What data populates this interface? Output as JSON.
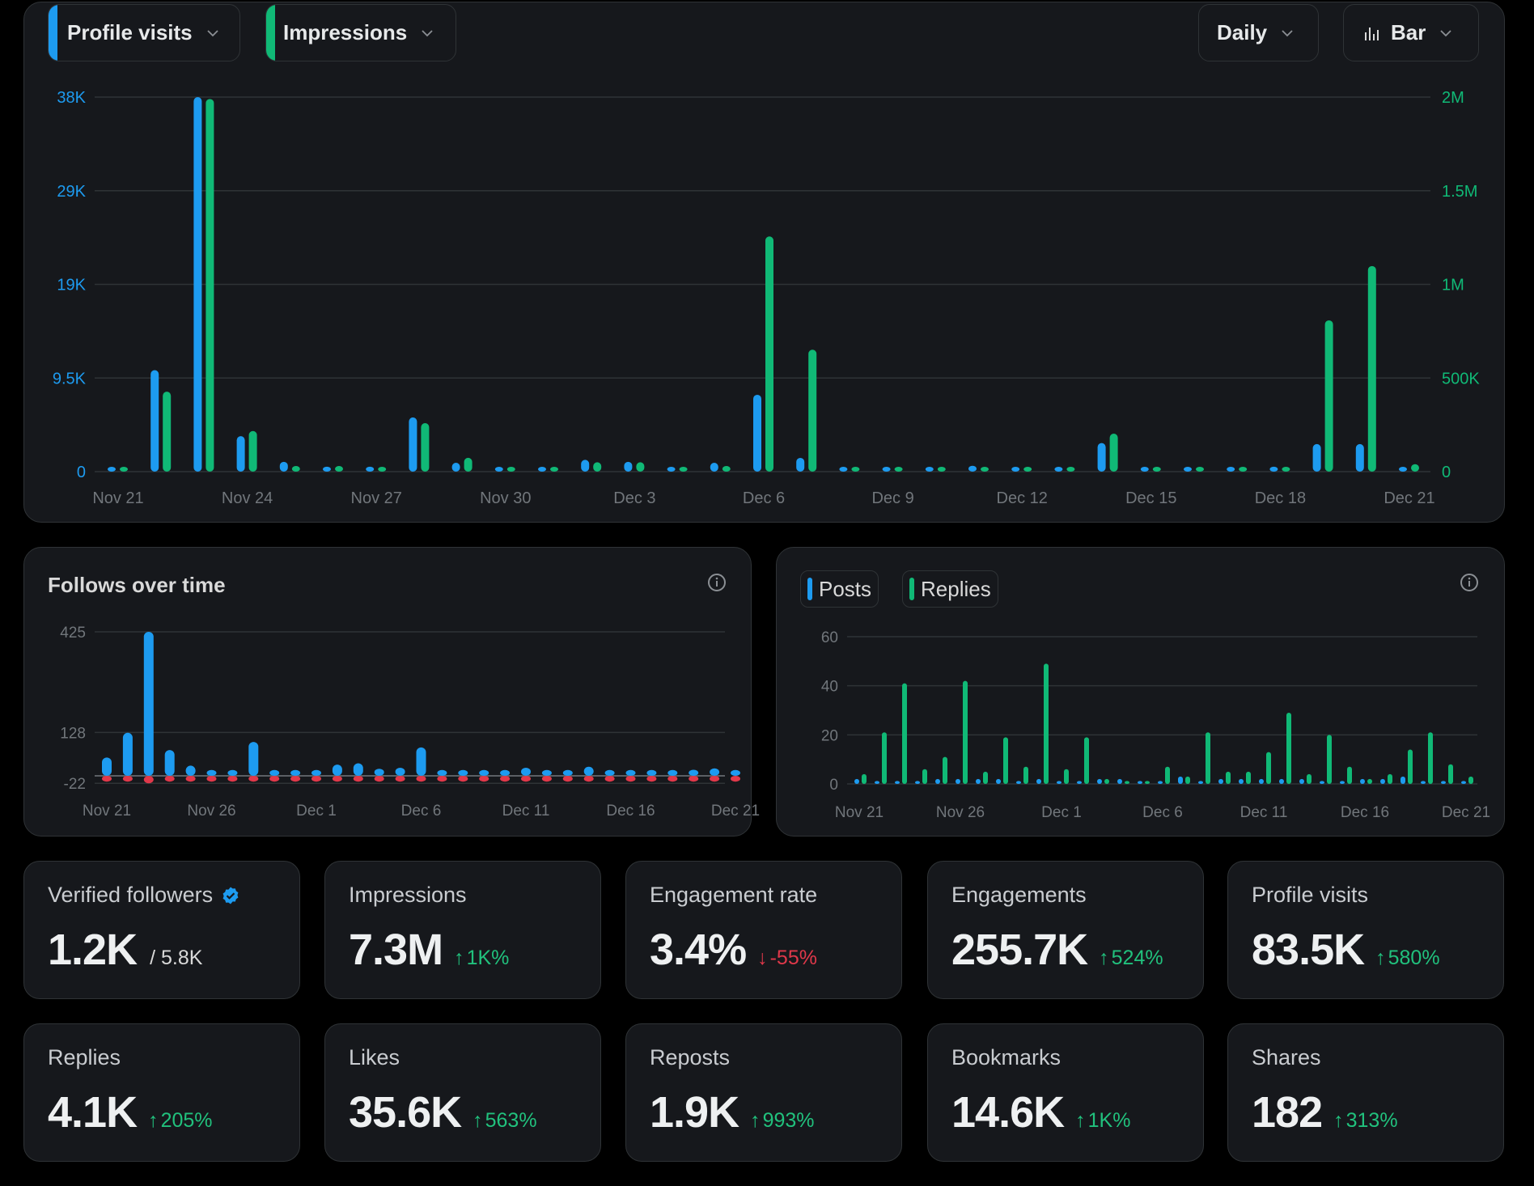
{
  "colors": {
    "blue": "#1d9bf0",
    "green": "#10b976",
    "red": "#e0384a",
    "grid": "#2f3336",
    "axis_text": "#71767b"
  },
  "main_chart": {
    "metric_left_label": "Profile visits",
    "metric_right_label": "Impressions",
    "interval_label": "Daily",
    "chart_type_label": "Bar",
    "chart_type_icon": "bar-chart-icon"
  },
  "follows_panel": {
    "title": "Follows over time",
    "info_icon": "info-icon"
  },
  "posts_panel": {
    "legend": [
      {
        "label": "Posts",
        "color": "#1d9bf0"
      },
      {
        "label": "Replies",
        "color": "#10b976"
      }
    ],
    "info_icon": "info-icon"
  },
  "cards": [
    {
      "label": "Verified followers",
      "value": "1.2K",
      "sub": "/ 5.8K",
      "verified_badge": true
    },
    {
      "label": "Impressions",
      "value": "7.3M",
      "change": "1K%",
      "direction": "up"
    },
    {
      "label": "Engagement rate",
      "value": "3.4%",
      "change": "-55%",
      "direction": "down"
    },
    {
      "label": "Engagements",
      "value": "255.7K",
      "change": "524%",
      "direction": "up"
    },
    {
      "label": "Profile visits",
      "value": "83.5K",
      "change": "580%",
      "direction": "up"
    },
    {
      "label": "Replies",
      "value": "4.1K",
      "change": "205%",
      "direction": "up"
    },
    {
      "label": "Likes",
      "value": "35.6K",
      "change": "563%",
      "direction": "up"
    },
    {
      "label": "Reposts",
      "value": "1.9K",
      "change": "993%",
      "direction": "up"
    },
    {
      "label": "Bookmarks",
      "value": "14.6K",
      "change": "1K%",
      "direction": "up"
    },
    {
      "label": "Shares",
      "value": "182",
      "change": "313%",
      "direction": "up"
    }
  ],
  "chart_data": [
    {
      "type": "bar",
      "title": "Profile visits vs Impressions (Daily)",
      "categories": [
        "Nov 21",
        "Nov 22",
        "Nov 23",
        "Nov 24",
        "Nov 25",
        "Nov 26",
        "Nov 27",
        "Nov 28",
        "Nov 29",
        "Nov 30",
        "Dec 1",
        "Dec 2",
        "Dec 3",
        "Dec 4",
        "Dec 5",
        "Dec 6",
        "Dec 7",
        "Dec 8",
        "Dec 9",
        "Dec 10",
        "Dec 11",
        "Dec 12",
        "Dec 13",
        "Dec 14",
        "Dec 15",
        "Dec 16",
        "Dec 17",
        "Dec 18",
        "Dec 19",
        "Dec 20",
        "Dec 21"
      ],
      "xtick_labels": [
        "Nov 21",
        "Nov 24",
        "Nov 27",
        "Nov 30",
        "Dec 3",
        "Dec 6",
        "Dec 9",
        "Dec 12",
        "Dec 15",
        "Dec 18",
        "Dec 21"
      ],
      "series": [
        {
          "name": "Profile visits",
          "axis": "left",
          "color": "#1d9bf0",
          "values": [
            400,
            10300,
            38000,
            3600,
            1000,
            500,
            500,
            5500,
            900,
            300,
            400,
            1200,
            1000,
            200,
            900,
            7800,
            1400,
            200,
            200,
            200,
            600,
            300,
            300,
            2900,
            200,
            100,
            300,
            500,
            2800,
            2800,
            200
          ]
        },
        {
          "name": "Impressions",
          "axis": "right",
          "color": "#10b976",
          "values": [
            20000,
            427000,
            1990000,
            217000,
            30000,
            30000,
            20000,
            259000,
            74000,
            10000,
            15000,
            50000,
            50000,
            10000,
            30000,
            1256000,
            651000,
            10000,
            10000,
            10000,
            20000,
            15000,
            15000,
            203000,
            15000,
            10000,
            10000,
            15000,
            808000,
            1098000,
            40000
          ]
        }
      ],
      "yleft": {
        "ticks": [
          "0",
          "9.5K",
          "19K",
          "29K",
          "38K"
        ],
        "tick_values": [
          0,
          9500,
          19000,
          28500,
          38000
        ],
        "range": [
          0,
          38000
        ]
      },
      "yright": {
        "ticks": [
          "0",
          "500K",
          "1M",
          "1.5M",
          "2M"
        ],
        "tick_values": [
          0,
          500000,
          1000000,
          1500000,
          2000000
        ],
        "range": [
          0,
          2000000
        ]
      },
      "grid": true
    },
    {
      "type": "bar",
      "title": "Follows over time",
      "categories": [
        "Nov 21",
        "Nov 22",
        "Nov 23",
        "Nov 24",
        "Nov 25",
        "Nov 26",
        "Nov 27",
        "Nov 28",
        "Nov 29",
        "Nov 30",
        "Dec 1",
        "Dec 2",
        "Dec 3",
        "Dec 4",
        "Dec 5",
        "Dec 6",
        "Dec 7",
        "Dec 8",
        "Dec 9",
        "Dec 10",
        "Dec 11",
        "Dec 12",
        "Dec 13",
        "Dec 14",
        "Dec 15",
        "Dec 16",
        "Dec 17",
        "Dec 18",
        "Dec 19",
        "Dec 20",
        "Dec 21"
      ],
      "xtick_labels": [
        "Nov 21",
        "Nov 26",
        "Dec 1",
        "Dec 6",
        "Dec 11",
        "Dec 16",
        "Dec 21"
      ],
      "series": [
        {
          "name": "Follows",
          "color": "#1d9bf0",
          "values": [
            54,
            127,
            425,
            76,
            30,
            14,
            17,
            100,
            16,
            11,
            11,
            33,
            37,
            21,
            24,
            84,
            16,
            6,
            3,
            11,
            24,
            10,
            11,
            27,
            3,
            3,
            6,
            10,
            18,
            22,
            6
          ]
        },
        {
          "name": "Unfollows",
          "color": "#e0384a",
          "values": [
            -8,
            -11,
            -22,
            -14,
            -11,
            -10,
            -3,
            -10,
            -6,
            -5,
            -8,
            -5,
            -5,
            -3,
            -6,
            -8,
            -5,
            -5,
            -11,
            -3,
            -14,
            -6,
            -6,
            -6,
            -3,
            -8,
            -2,
            -2,
            -8,
            -8,
            -5
          ]
        }
      ],
      "yticks": [
        "-22",
        "128",
        "425"
      ],
      "ytick_values": [
        -22,
        128,
        425
      ],
      "ylim": [
        -22,
        425
      ],
      "grid": true
    },
    {
      "type": "bar",
      "title": "Posts and Replies",
      "categories": [
        "Nov 21",
        "Nov 22",
        "Nov 23",
        "Nov 24",
        "Nov 25",
        "Nov 26",
        "Nov 27",
        "Nov 28",
        "Nov 29",
        "Nov 30",
        "Dec 1",
        "Dec 2",
        "Dec 3",
        "Dec 4",
        "Dec 5",
        "Dec 6",
        "Dec 7",
        "Dec 8",
        "Dec 9",
        "Dec 10",
        "Dec 11",
        "Dec 12",
        "Dec 13",
        "Dec 14",
        "Dec 15",
        "Dec 16",
        "Dec 17",
        "Dec 18",
        "Dec 19",
        "Dec 20",
        "Dec 21"
      ],
      "xtick_labels": [
        "Nov 21",
        "Nov 26",
        "Dec 1",
        "Dec 6",
        "Dec 11",
        "Dec 16",
        "Dec 21"
      ],
      "series": [
        {
          "name": "Posts",
          "color": "#1d9bf0",
          "values": [
            2,
            1,
            1,
            1,
            2,
            2,
            2,
            2,
            1,
            2,
            1,
            1,
            2,
            2,
            1,
            0,
            3,
            0,
            2,
            2,
            2,
            2,
            2,
            0,
            1,
            2,
            2,
            3,
            1,
            0,
            1
          ]
        },
        {
          "name": "Replies",
          "color": "#10b976",
          "values": [
            4,
            21,
            41,
            6,
            11,
            42,
            5,
            19,
            7,
            49,
            6,
            19,
            2,
            0,
            1,
            7,
            3,
            21,
            5,
            5,
            13,
            29,
            4,
            20,
            7,
            2,
            4,
            14,
            21,
            8,
            3
          ]
        }
      ],
      "yticks": [
        "0",
        "20",
        "40",
        "60"
      ],
      "ytick_values": [
        0,
        20,
        40,
        60
      ],
      "ylim": [
        0,
        60
      ],
      "legend": "top-left",
      "grid": true
    }
  ]
}
